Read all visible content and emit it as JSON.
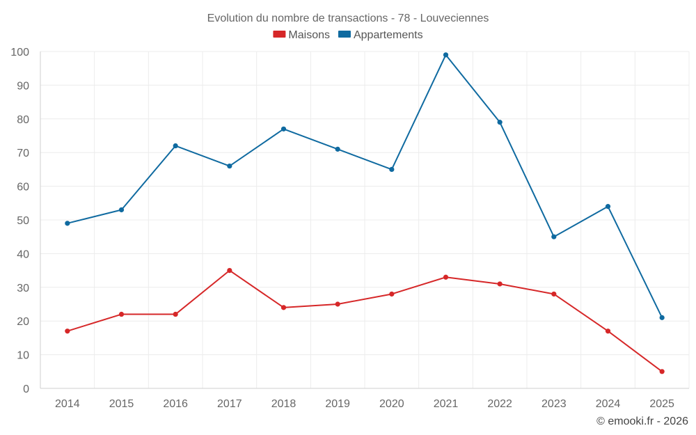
{
  "chart_data": {
    "type": "line",
    "title": "Evolution du nombre de transactions - 78 - Louveciennes",
    "categories": [
      "2014",
      "2015",
      "2016",
      "2017",
      "2018",
      "2019",
      "2020",
      "2021",
      "2022",
      "2023",
      "2024",
      "2025"
    ],
    "series": [
      {
        "name": "Maisons",
        "color": "#d62728",
        "values": [
          17,
          22,
          22,
          35,
          24,
          25,
          28,
          33,
          31,
          28,
          17,
          5
        ]
      },
      {
        "name": "Appartements",
        "color": "#0f6aa0",
        "values": [
          49,
          53,
          72,
          66,
          77,
          71,
          65,
          99,
          79,
          45,
          54,
          21
        ]
      }
    ],
    "ylim": [
      0,
      100
    ],
    "yticks": [
      0,
      10,
      20,
      30,
      40,
      50,
      60,
      70,
      80,
      90,
      100
    ],
    "xlabel": "",
    "ylabel": "",
    "grid": true,
    "legend": "top-center"
  },
  "credit": "© emooki.fr - 2026"
}
